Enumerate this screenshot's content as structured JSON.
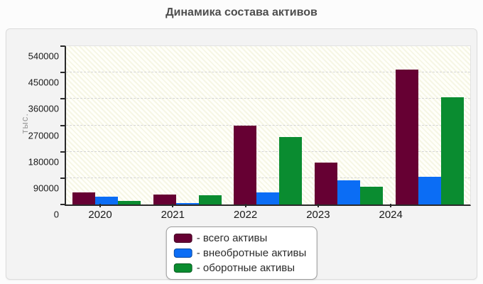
{
  "title": "Динамика состава активов",
  "chart_data": {
    "type": "bar",
    "title": "Динамика состава активов",
    "categories": [
      "2020",
      "2021",
      "2022",
      "2023",
      "2024"
    ],
    "series": [
      {
        "name": "всего активы",
        "color": "#660033",
        "values": [
          40000,
          33000,
          270000,
          142000,
          460000
        ]
      },
      {
        "name": "внеобротные активы",
        "color": "#0b6df5",
        "values": [
          27000,
          2000,
          40000,
          82000,
          95000
        ]
      },
      {
        "name": "оборотные активы",
        "color": "#0a8c30",
        "values": [
          13000,
          31000,
          230000,
          60000,
          365000
        ]
      }
    ],
    "legend_items": [
      "- всего активы",
      "- внеобротные активы",
      "- оборотные активы"
    ],
    "xlabel": "",
    "ylabel": "тыс.",
    "ylim": [
      0,
      540000
    ],
    "yticks": [
      0,
      90000,
      180000,
      270000,
      360000,
      450000,
      540000
    ],
    "grid": true,
    "grid_style": "dashed",
    "legend_position": "bottom-center",
    "colors": {
      "axis": "#2a2a2a",
      "grid": "#d4d4d4",
      "title_text": "#4d4d4d",
      "panel_bg": "#f3f3f3",
      "plot_bg": "#fffffa"
    }
  }
}
